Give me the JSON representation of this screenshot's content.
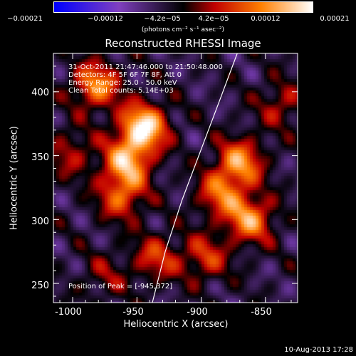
{
  "colorbar": {
    "ticks": [
      "−0.00021",
      "−0.00012",
      "−4.2e−05",
      "4.2e−05",
      "0.00012",
      "0.00021"
    ],
    "units": "(photons cm⁻² s⁻¹ asec⁻²)"
  },
  "chart_data": {
    "type": "heatmap",
    "title": "Reconstructed RHESSI Image",
    "xlabel": "Heliocentric X (arcsec)",
    "ylabel": "Heliocentric Y (arcsec)",
    "xlim": [
      -1015,
      -825
    ],
    "ylim": [
      235,
      430
    ],
    "xticks": [
      -1000,
      -950,
      -900,
      -850
    ],
    "yticks": [
      250,
      300,
      350,
      400
    ],
    "colorbar_range": [
      -0.00021,
      0.00021
    ],
    "colormap": [
      "#0000ff",
      "#8040c0",
      "#000000",
      "#c00000",
      "#ff8000",
      "#ffffff"
    ],
    "sources": [
      {
        "x": -945,
        "y": 372,
        "amp": 1.0
      },
      {
        "x": -958,
        "y": 345,
        "amp": 0.75
      },
      {
        "x": -982,
        "y": 405,
        "amp": 0.7
      },
      {
        "x": -962,
        "y": 318,
        "amp": 0.55
      },
      {
        "x": -1002,
        "y": 352,
        "amp": 0.35
      },
      {
        "x": -870,
        "y": 345,
        "amp": 0.7
      },
      {
        "x": -862,
        "y": 300,
        "amp": 0.7
      },
      {
        "x": -885,
        "y": 320,
        "amp": 0.55
      },
      {
        "x": -897,
        "y": 270,
        "amp": 0.45
      },
      {
        "x": -935,
        "y": 270,
        "amp": 0.45
      },
      {
        "x": -838,
        "y": 390,
        "amp": 0.35
      },
      {
        "x": -975,
        "y": 255,
        "amp": 0.25
      }
    ],
    "limb_curve": [
      [
        -938,
        235
      ],
      [
        -928,
        275
      ],
      [
        -915,
        315
      ],
      [
        -900,
        355
      ],
      [
        -885,
        395
      ],
      [
        -872,
        430
      ]
    ]
  },
  "info_lines": [
    "31-Oct-2011 21:47:46.000 to 21:50:48.000",
    "Detectors: 4F 5F 6F 7F 8F, Att 0",
    "Energy Range: 25.0 - 50.0 keV",
    "Clean     Total counts: 5.14E+03"
  ],
  "peak_label": "Position of Peak = [-945,372]",
  "timestamp": "10-Aug-2013 17:28"
}
